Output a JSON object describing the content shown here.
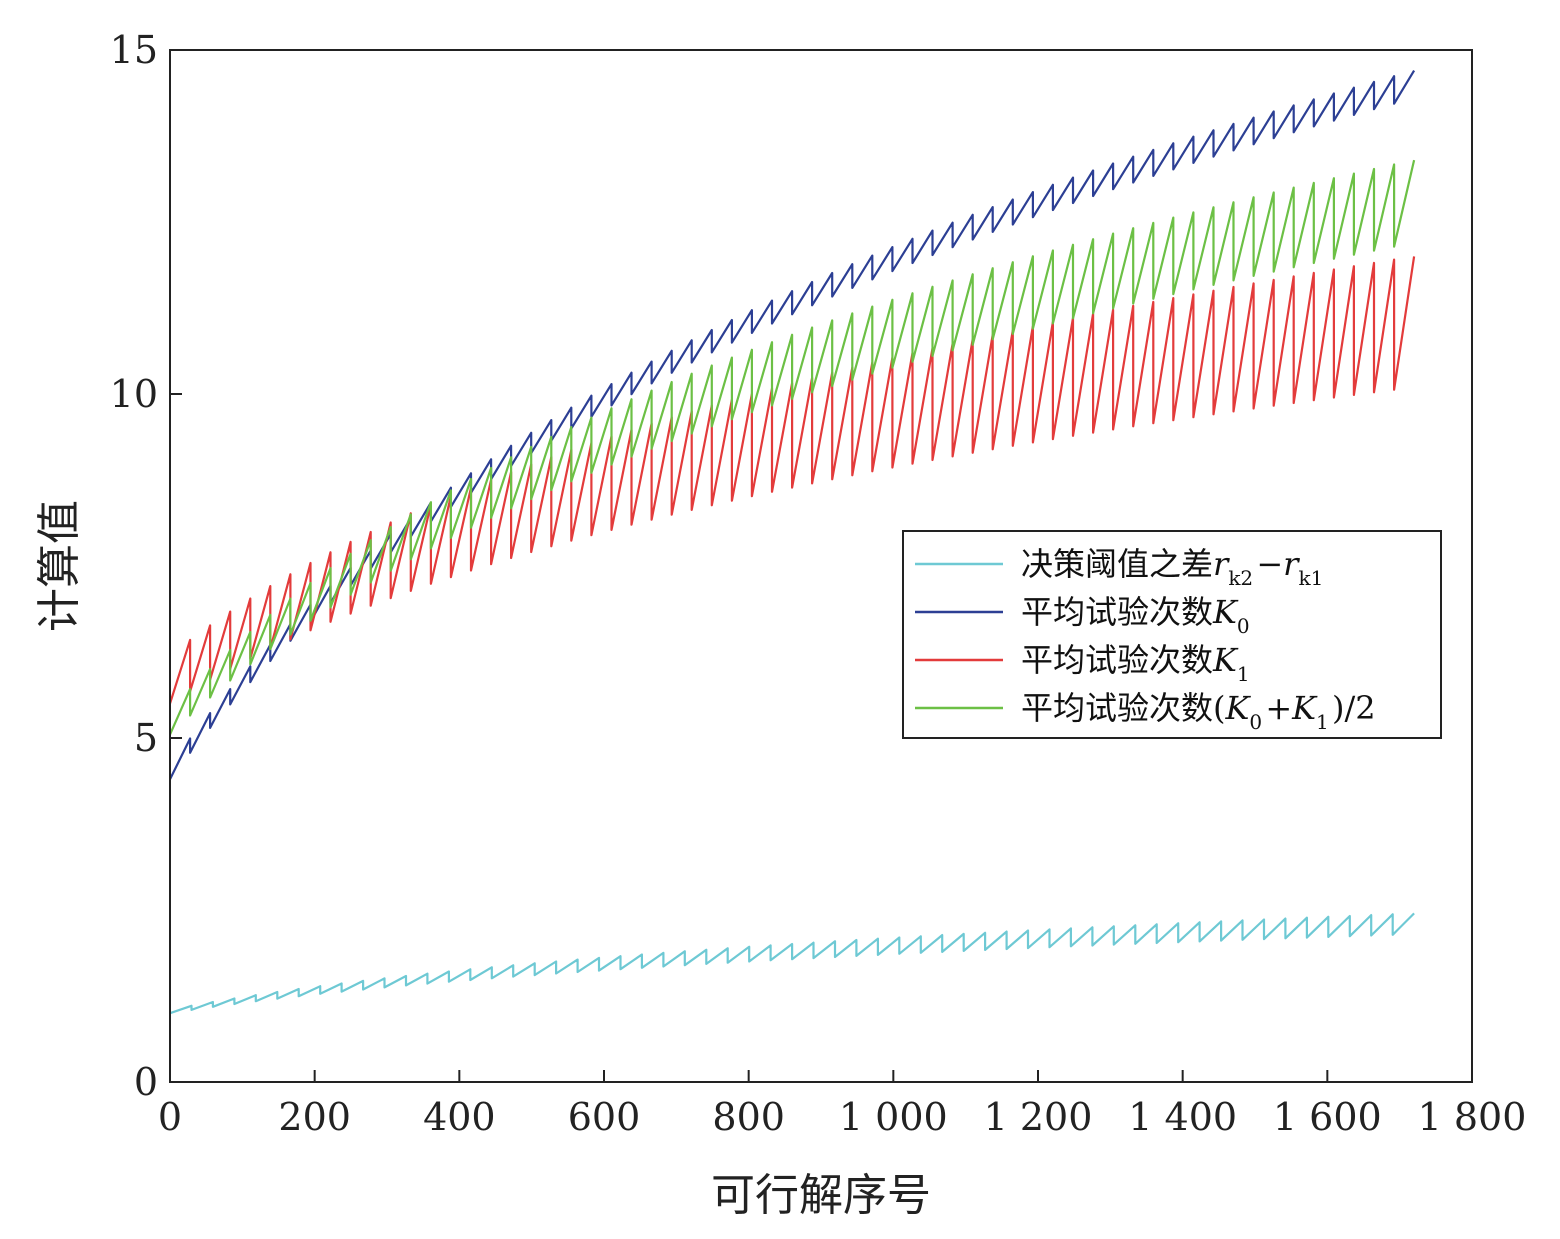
{
  "chart_data": {
    "type": "line",
    "xlabel": "可行解序号",
    "ylabel": "计算值",
    "xlim": [
      0,
      1800
    ],
    "ylim": [
      0,
      15
    ],
    "x_ticks": [
      0,
      200,
      400,
      600,
      800,
      1000,
      1200,
      1400,
      1600,
      1800
    ],
    "x_tick_labels": [
      "0",
      "200",
      "400",
      "600",
      "800",
      "1 000",
      "1 200",
      "1 400",
      "1 600",
      "1 800"
    ],
    "y_ticks": [
      0,
      5,
      10,
      15
    ],
    "y_tick_labels": [
      "0",
      "5",
      "10",
      "15"
    ],
    "grid": false,
    "legend_position": "right-middle",
    "series": [
      {
        "name": "决策阈值之差r_k2−r_k1",
        "legend": {
          "prefix": "决策阈值之差",
          "math": [
            [
              "r",
              "k2"
            ],
            [
              "−",
              ""
            ],
            [
              "r",
              "k1"
            ]
          ]
        },
        "color": "#6ec9d4",
        "pattern": "sawtooth",
        "x_range": [
          0,
          1720
        ],
        "upper_start": 1.05,
        "upper_end": 2.45,
        "lower_start": 1.0,
        "lower_end": 2.15,
        "teeth": 58
      },
      {
        "name": "平均试验次数K0",
        "legend": {
          "prefix": "平均试验次数",
          "math": [
            [
              "K",
              "0"
            ]
          ]
        },
        "color": "#2c3f94",
        "pattern": "sawtooth",
        "x_range": [
          0,
          1720
        ],
        "upper_start": 4.6,
        "upper_end": 14.7,
        "lower_start": 4.4,
        "lower_end": 14.3,
        "teeth": 62
      },
      {
        "name": "平均试验次数K1",
        "legend": {
          "prefix": "平均试验次数",
          "math": [
            [
              "K",
              "1"
            ]
          ]
        },
        "color": "#e33b3b",
        "pattern": "sawtooth",
        "x_range": [
          0,
          1720
        ],
        "upper_start": 6.2,
        "upper_end": 12.0,
        "lower_start": 5.5,
        "lower_end": 10.1,
        "teeth": 62
      },
      {
        "name": "平均试验次数(K0+K1)/2",
        "legend": {
          "prefix": "平均试验次数(",
          "math": [
            [
              "K",
              "0"
            ],
            [
              "+",
              ""
            ],
            [
              "K",
              "1"
            ],
            [
              ")/2",
              ""
            ]
          ]
        },
        "color": "#6cc045",
        "pattern": "sawtooth",
        "x_range": [
          0,
          1720
        ],
        "upper_start": 5.4,
        "upper_end": 13.4,
        "lower_start": 5.05,
        "lower_end": 12.2,
        "teeth": 62
      }
    ]
  }
}
